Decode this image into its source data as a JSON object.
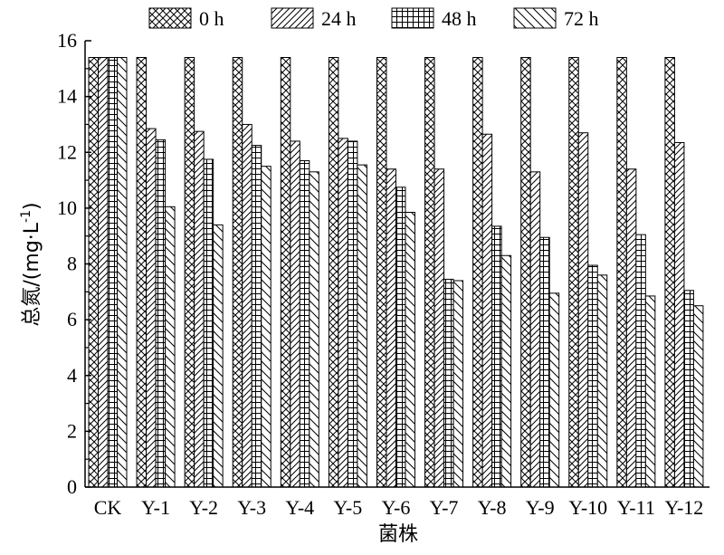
{
  "chart_data": {
    "type": "bar",
    "title": "",
    "xlabel": "菌株",
    "ylabel": "总氮/(mg·L",
    "ylabel_sup": "-1",
    "ylabel_close": ")",
    "ylim": [
      0,
      16
    ],
    "yticks": [
      0,
      2,
      4,
      6,
      8,
      10,
      12,
      14,
      16
    ],
    "grid": false,
    "legend_position": "top",
    "categories": [
      "CK",
      "Y-1",
      "Y-2",
      "Y-3",
      "Y-4",
      "Y-5",
      "Y-6",
      "Y-7",
      "Y-8",
      "Y-9",
      "Y-10",
      "Y-11",
      "Y-12"
    ],
    "series": [
      {
        "name": "0 h",
        "pattern": "crosshatch",
        "values": [
          15.4,
          15.4,
          15.4,
          15.4,
          15.4,
          15.4,
          15.4,
          15.4,
          15.4,
          15.4,
          15.4,
          15.4,
          15.4
        ]
      },
      {
        "name": "24 h",
        "pattern": "diag-right",
        "values": [
          15.4,
          12.85,
          12.75,
          13.0,
          12.4,
          12.5,
          11.4,
          11.4,
          12.65,
          11.3,
          12.7,
          11.4,
          12.35
        ]
      },
      {
        "name": "48 h",
        "pattern": "grid",
        "values": [
          15.4,
          12.45,
          11.75,
          12.25,
          11.7,
          12.4,
          10.75,
          7.45,
          9.35,
          8.95,
          7.95,
          9.05,
          7.05
        ]
      },
      {
        "name": "72 h",
        "pattern": "diag-left",
        "values": [
          15.4,
          10.05,
          9.4,
          11.5,
          11.3,
          11.55,
          9.85,
          7.4,
          8.3,
          6.95,
          7.6,
          6.85,
          6.5
        ]
      }
    ]
  }
}
